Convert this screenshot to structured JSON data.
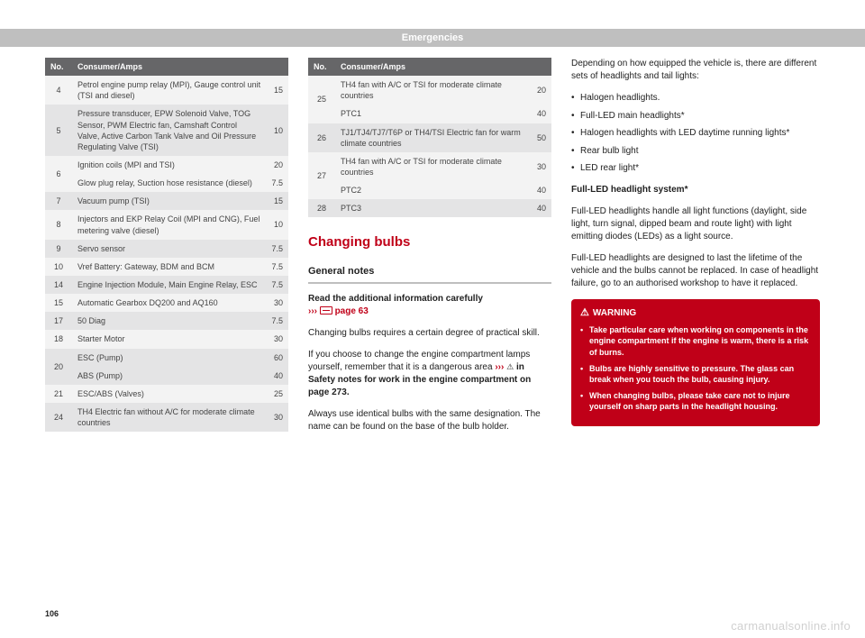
{
  "header": "Emergencies",
  "page_number": "106",
  "watermark": "carmanualsonline.info",
  "table1": {
    "headers": {
      "no": "No.",
      "consumer": "Consumer/Amps"
    },
    "rows": [
      {
        "no": "4",
        "desc": "Petrol engine pump relay (MPI), Gauge control unit (TSI and diesel)",
        "amps": "15",
        "shade": "light"
      },
      {
        "no": "5",
        "desc": "Pressure transducer, EPW Solenoid Valve, TOG Sensor, PWM Electric fan, Camshaft Control Valve, Active Carbon Tank Valve and Oil Pressure Regulating Valve (TSI)",
        "amps": "10",
        "shade": "dark"
      },
      {
        "no": "",
        "desc": "Ignition coils (MPI and TSI)",
        "amps": "20",
        "shade": "light",
        "group_no": "6"
      },
      {
        "no": "6",
        "desc": "Glow plug relay, Suction hose resistance (diesel)",
        "amps": "7.5",
        "shade": "light",
        "hide_no": true
      },
      {
        "no": "7",
        "desc": "Vacuum pump (TSI)",
        "amps": "15",
        "shade": "dark"
      },
      {
        "no": "8",
        "desc": "Injectors and EKP Relay Coil (MPI and CNG), Fuel metering valve (diesel)",
        "amps": "10",
        "shade": "light"
      },
      {
        "no": "9",
        "desc": "Servo sensor",
        "amps": "7.5",
        "shade": "dark"
      },
      {
        "no": "10",
        "desc": "Vref Battery: Gateway, BDM and BCM",
        "amps": "7.5",
        "shade": "light"
      },
      {
        "no": "14",
        "desc": "Engine Injection Module, Main Engine Relay, ESC",
        "amps": "7.5",
        "shade": "dark"
      },
      {
        "no": "15",
        "desc": "Automatic Gearbox DQ200 and AQ160",
        "amps": "30",
        "shade": "light"
      },
      {
        "no": "17",
        "desc": "50 Diag",
        "amps": "7.5",
        "shade": "dark"
      },
      {
        "no": "18",
        "desc": "Starter Motor",
        "amps": "30",
        "shade": "light"
      },
      {
        "no": "",
        "desc": "ESC (Pump)",
        "amps": "60",
        "shade": "dark",
        "group_no": "20"
      },
      {
        "no": "20",
        "desc": "ABS (Pump)",
        "amps": "40",
        "shade": "dark",
        "hide_no": true
      },
      {
        "no": "21",
        "desc": "ESC/ABS (Valves)",
        "amps": "25",
        "shade": "light"
      },
      {
        "no": "24",
        "desc": "TH4 Electric fan without A/C for moderate climate countries",
        "amps": "30",
        "shade": "dark"
      }
    ]
  },
  "table2": {
    "headers": {
      "no": "No.",
      "consumer": "Consumer/Amps"
    },
    "rows": [
      {
        "no": "",
        "desc": "TH4 fan with A/C or TSI for moderate climate countries",
        "amps": "20",
        "shade": "light",
        "group_no": "25"
      },
      {
        "no": "25",
        "desc": "PTC1",
        "amps": "40",
        "shade": "light",
        "hide_no": true
      },
      {
        "no": "26",
        "desc": "TJ1/TJ4/TJ7/T6P or TH4/TSI Electric fan for warm climate countries",
        "amps": "50",
        "shade": "dark"
      },
      {
        "no": "",
        "desc": "TH4 fan with A/C or TSI for moderate climate countries",
        "amps": "30",
        "shade": "light",
        "group_no": "27"
      },
      {
        "no": "27",
        "desc": "PTC2",
        "amps": "40",
        "shade": "light",
        "hide_no": true
      },
      {
        "no": "28",
        "desc": "PTC3",
        "amps": "40",
        "shade": "dark"
      }
    ]
  },
  "changing_bulbs": {
    "title": "Changing bulbs",
    "subtitle": "General notes",
    "read_more": "Read the additional information carefully",
    "page_ref": "page 63",
    "p1": "Changing bulbs requires a certain degree of practical skill.",
    "p2a": "If you choose to change the engine compartment lamps yourself, remember that it is a dangerous area ",
    "p2b": " in Safety notes for work in the engine compartment on page 273",
    "p3": "Always use identical bulbs with the same designation. The name can be found on the base of the bulb holder."
  },
  "col3": {
    "intro": "Depending on how equipped the vehicle is, there are different sets of headlights and tail lights:",
    "bullets": [
      "Halogen headlights.",
      "Full-LED main headlights*",
      "Halogen headlights with LED daytime running lights*",
      "Rear bulb light",
      "LED rear light*"
    ],
    "full_led_head": "Full-LED headlight system*",
    "full_led_p1": "Full-LED headlights handle all light functions (daylight, side light, turn signal, dipped beam and route light) with light emitting diodes (LEDs) as a light source.",
    "full_led_p2": "Full-LED headlights are designed to last the lifetime of the vehicle and the bulbs cannot be replaced. In case of headlight failure, go to an authorised workshop to have it replaced."
  },
  "warning": {
    "label": "WARNING",
    "items": [
      "Take particular care when working on components in the engine compartment if the engine is warm, there is a risk of burns.",
      "Bulbs are highly sensitive to pressure. The glass can break when you touch the bulb, causing injury.",
      "When changing bulbs, please take care not to injure yourself on sharp parts in the headlight housing."
    ]
  }
}
